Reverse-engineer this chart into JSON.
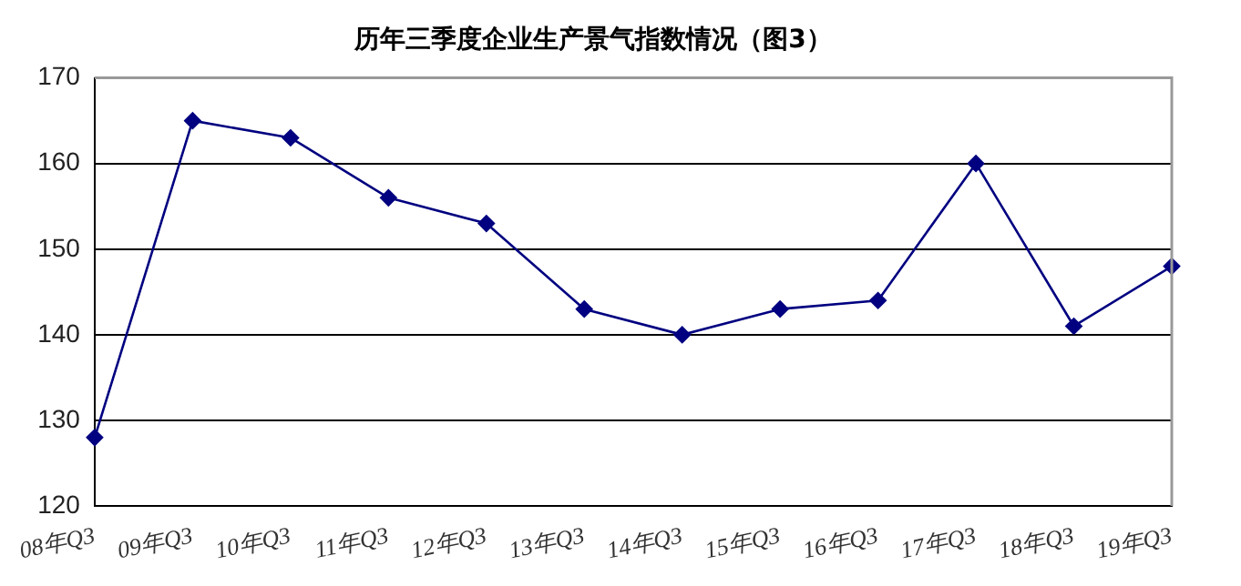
{
  "chart_data": {
    "type": "line",
    "title": "历年三季度企业生产景气指数情况（图3）",
    "categories": [
      "08年Q3",
      "09年Q3",
      "10年Q3",
      "11年Q3",
      "12年Q3",
      "13年Q3",
      "14年Q3",
      "15年Q3",
      "16年Q3",
      "17年Q3",
      "18年Q3",
      "19年Q3"
    ],
    "series": [
      {
        "color": "#000080",
        "values": [
          128,
          165,
          163,
          156,
          153,
          143,
          140,
          143,
          144,
          160,
          141,
          148
        ]
      }
    ],
    "ylim": [
      120,
      170
    ],
    "yticks": [
      120,
      130,
      140,
      150,
      160,
      170
    ],
    "grid": "y",
    "legend": false,
    "marker": "diamond",
    "line_style": "solid"
  }
}
